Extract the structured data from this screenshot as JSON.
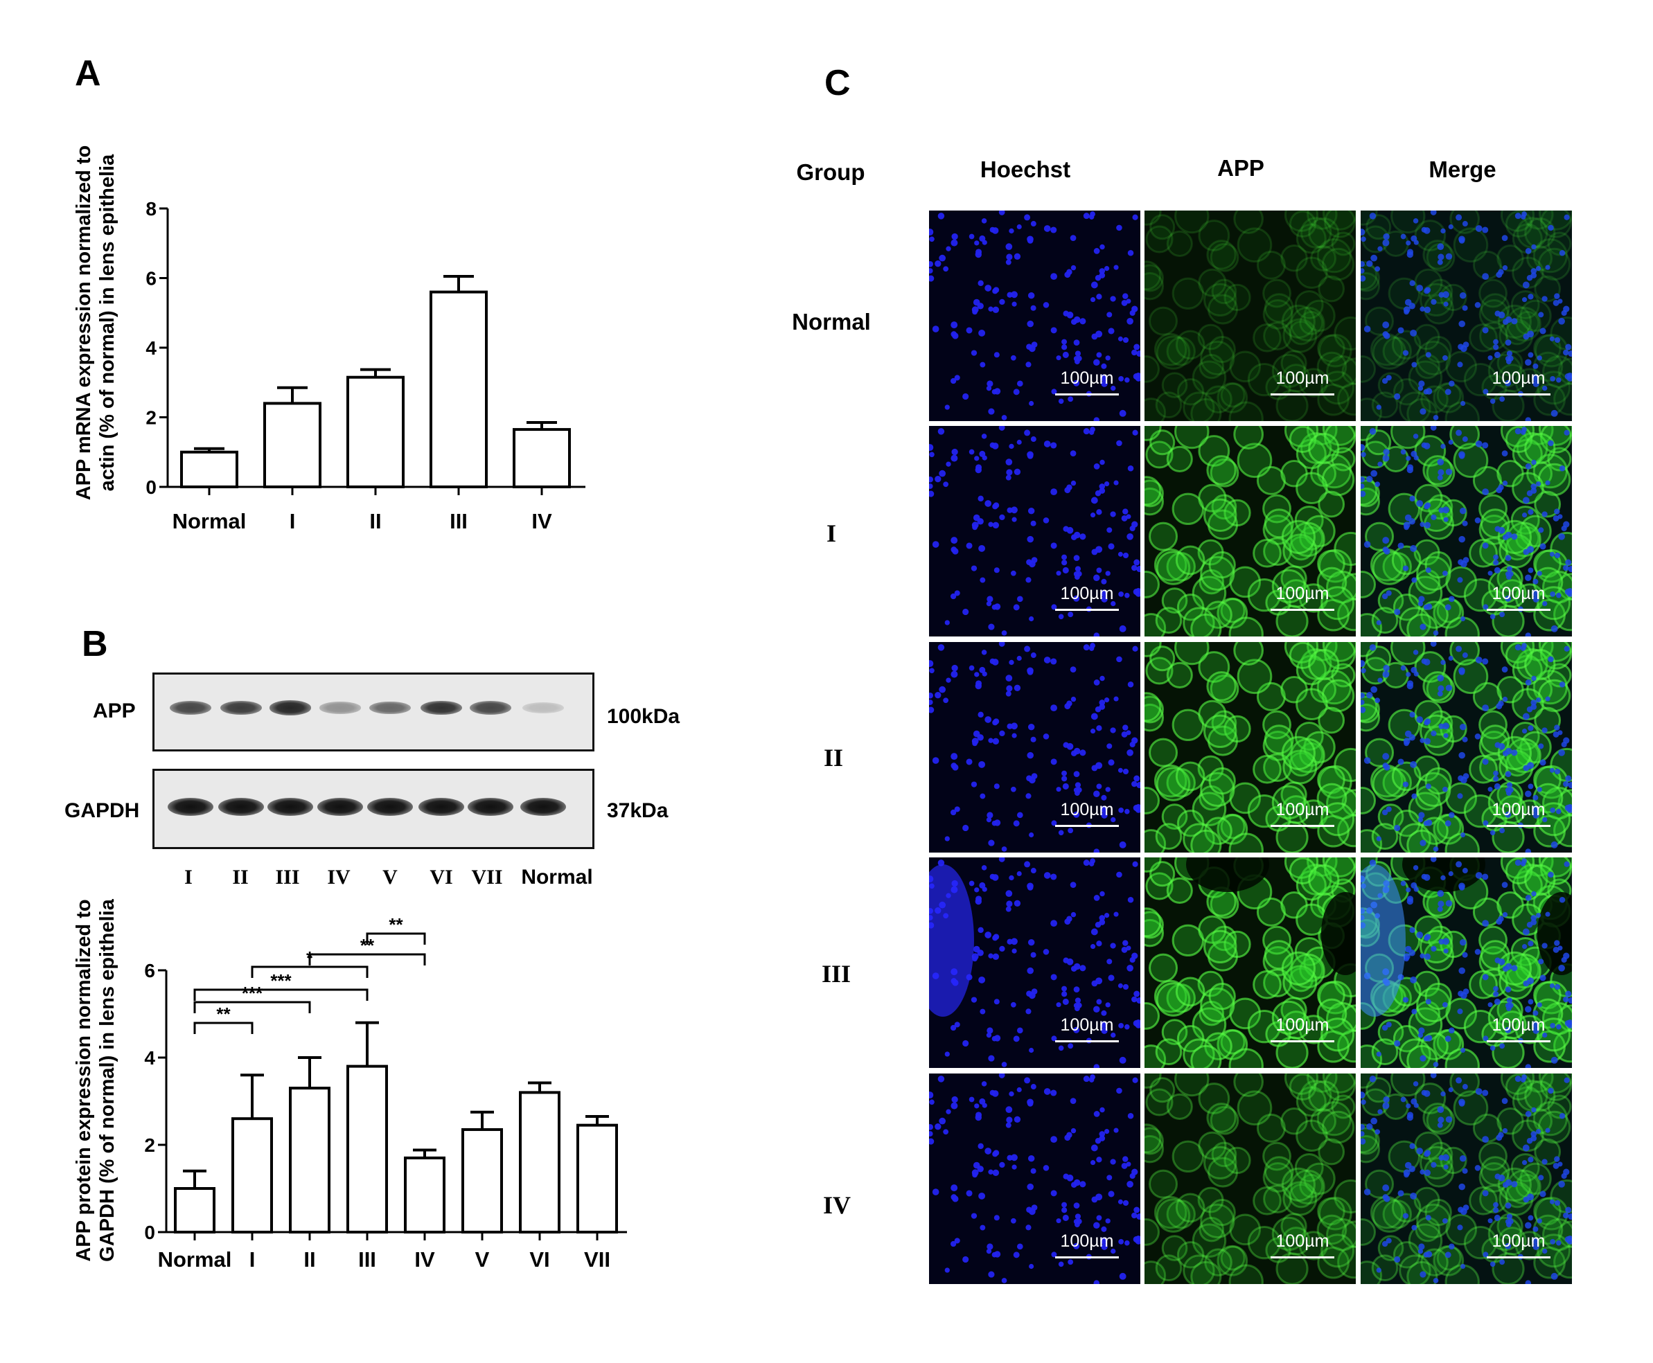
{
  "panels": {
    "a": "A",
    "b": "B",
    "c": "C"
  },
  "chart_data": [
    {
      "type": "bar",
      "categories": [
        "Normal",
        "I",
        "II",
        "III",
        "IV"
      ],
      "values": [
        1.0,
        2.4,
        3.15,
        5.6,
        1.65
      ],
      "errors": [
        0.1,
        0.45,
        0.22,
        0.45,
        0.2
      ],
      "title": "",
      "xlabel": "",
      "ylabel": "APP  mRNA  expression  normalized to actin (% of normal) in lens epithelia",
      "ylabel_lines": [
        "APP  mRNA  expression  normalized to",
        "actin (% of normal) in lens epithelia"
      ],
      "ylim": [
        0,
        8
      ],
      "yticks": [
        0,
        2,
        4,
        6,
        8
      ],
      "grid": false
    },
    {
      "type": "bar",
      "categories": [
        "Normal",
        "I",
        "II",
        "III",
        "IV",
        "V",
        "VI",
        "VII"
      ],
      "values": [
        1.0,
        2.6,
        3.3,
        3.8,
        1.7,
        2.35,
        3.2,
        2.45
      ],
      "errors": [
        0.4,
        1.0,
        0.7,
        1.0,
        0.18,
        0.4,
        0.22,
        0.2
      ],
      "title": "",
      "xlabel": "",
      "ylabel": "APP protein expression  normalized to GAPDH (% of normal) in lens epithelia",
      "ylabel_lines": [
        "APP protein expression  normalized to",
        "GAPDH (% of normal) in lens epithelia"
      ],
      "ylim": [
        0,
        6
      ],
      "yticks": [
        0,
        2,
        4,
        6
      ],
      "grid": false,
      "significance": [
        {
          "from": "Normal",
          "to": "I",
          "label": "**"
        },
        {
          "from": "Normal",
          "to": "II",
          "label": "***"
        },
        {
          "from": "Normal",
          "to": "III",
          "label": "***"
        },
        {
          "from": "I",
          "to": "III",
          "label": "*"
        },
        {
          "from": "II",
          "to": "IV",
          "label": "**"
        },
        {
          "from": "III",
          "to": "IV",
          "label": "**"
        }
      ]
    }
  ],
  "blot": {
    "rows": [
      {
        "label": "APP",
        "kda": "100kDa",
        "intensities": [
          0.75,
          0.8,
          0.9,
          0.4,
          0.6,
          0.85,
          0.75,
          0.2
        ]
      },
      {
        "label": "GAPDH",
        "kda": "37kDa",
        "intensities": [
          1,
          1,
          1,
          1,
          1,
          1,
          1,
          1
        ]
      }
    ],
    "lanes": [
      "I",
      "II",
      "III",
      "IV",
      "V",
      "VI",
      "VII",
      "Normal"
    ]
  },
  "micro": {
    "group_header": "Group",
    "columns": [
      "Hoechst",
      "APP",
      "Merge"
    ],
    "rows": [
      "Normal",
      "I",
      "II",
      "III",
      "IV"
    ],
    "green_levels": [
      0.12,
      0.85,
      0.9,
      0.95,
      0.45
    ],
    "scale_label": "100µm"
  }
}
